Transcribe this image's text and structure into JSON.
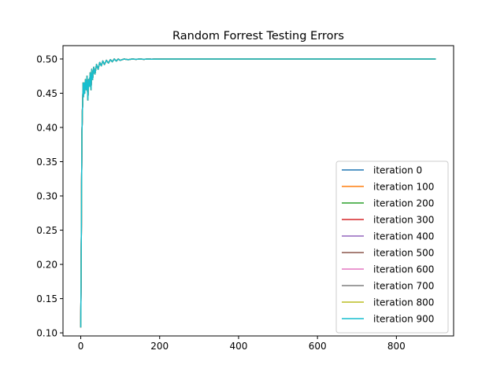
{
  "chart_data": {
    "type": "line",
    "title": "Random Forrest Testing Errors",
    "xlabel": "",
    "ylabel": "",
    "xlim": [
      -45,
      945
    ],
    "ylim": [
      0.0955,
      0.5195
    ],
    "xticks": [
      0,
      200,
      400,
      600,
      800
    ],
    "yticks": [
      0.1,
      0.15,
      0.2,
      0.25,
      0.3,
      0.35,
      0.4,
      0.45,
      0.5
    ],
    "ytick_labels": [
      "0.10",
      "0.15",
      "0.20",
      "0.25",
      "0.30",
      "0.35",
      "0.40",
      "0.45",
      "0.50"
    ],
    "legend_position": "lower-right",
    "x_max": 900,
    "series": [
      {
        "name": "iteration 0",
        "color": "#1f77b4"
      },
      {
        "name": "iteration 100",
        "color": "#ff7f0e"
      },
      {
        "name": "iteration 200",
        "color": "#2ca02c"
      },
      {
        "name": "iteration 300",
        "color": "#d62728"
      },
      {
        "name": "iteration 400",
        "color": "#9467bd"
      },
      {
        "name": "iteration 500",
        "color": "#8c564b"
      },
      {
        "name": "iteration 600",
        "color": "#e377c2"
      },
      {
        "name": "iteration 700",
        "color": "#7f7f7f"
      },
      {
        "name": "iteration 800",
        "color": "#bcbd22"
      },
      {
        "name": "iteration 900",
        "color": "#17becf"
      }
    ],
    "curve": {
      "x": [
        0,
        1,
        2,
        3,
        4,
        5,
        6,
        7,
        8,
        9,
        10,
        12,
        14,
        16,
        18,
        20,
        22,
        24,
        26,
        28,
        30,
        33,
        36,
        40,
        44,
        48,
        52,
        56,
        60,
        65,
        70,
        75,
        80,
        85,
        90,
        95,
        100,
        110,
        120,
        130,
        140,
        150,
        160,
        170,
        180,
        190,
        200,
        220,
        240,
        260,
        280,
        300,
        350,
        400,
        500,
        600,
        700,
        800,
        900
      ],
      "y": [
        0.108,
        0.2,
        0.3,
        0.39,
        0.42,
        0.44,
        0.465,
        0.445,
        0.455,
        0.465,
        0.45,
        0.47,
        0.455,
        0.475,
        0.44,
        0.47,
        0.46,
        0.48,
        0.455,
        0.485,
        0.47,
        0.488,
        0.478,
        0.492,
        0.485,
        0.495,
        0.49,
        0.497,
        0.492,
        0.498,
        0.494,
        0.499,
        0.496,
        0.5,
        0.497,
        0.5,
        0.498,
        0.5,
        0.499,
        0.5,
        0.4995,
        0.5,
        0.4995,
        0.5,
        0.4997,
        0.5,
        0.4998,
        0.5,
        0.4999,
        0.5,
        0.4999,
        0.5,
        0.5,
        0.5,
        0.5,
        0.5,
        0.5,
        0.5,
        0.5
      ]
    }
  }
}
